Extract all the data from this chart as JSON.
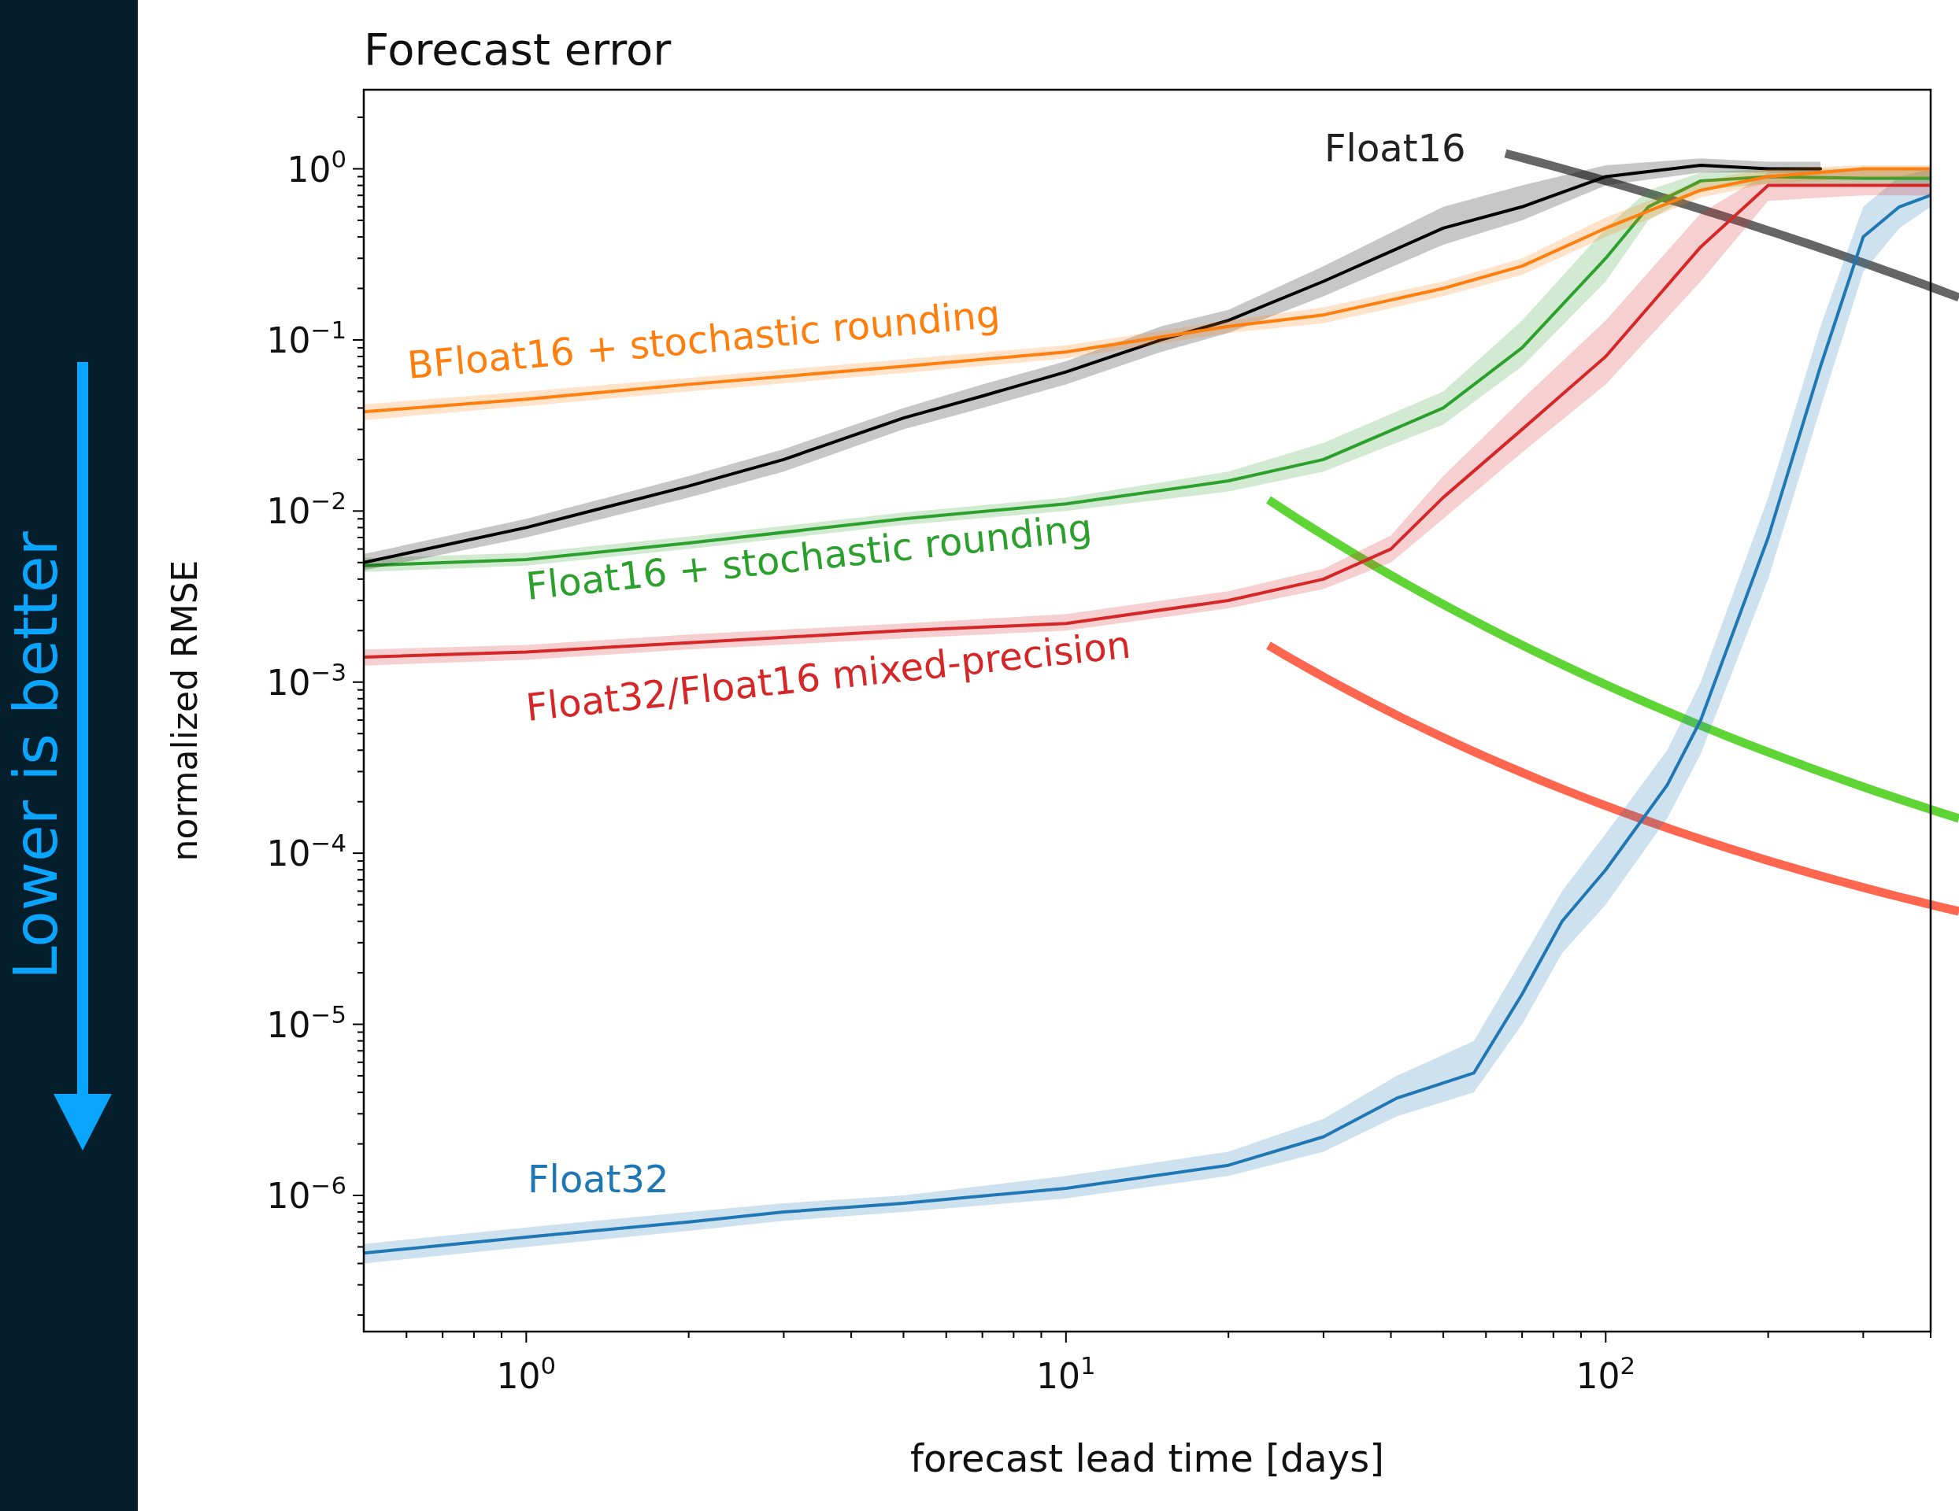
{
  "chart_data": {
    "type": "line",
    "title": "Forecast error",
    "xlabel": "forecast lead time [days]",
    "ylabel": "normalized RMSE",
    "log": "xy",
    "grid": false,
    "line_style": "solid",
    "marker": "none",
    "annotations": [
      "Lower is better"
    ],
    "xlim": [
      0.5,
      400
    ],
    "ylim": [
      1.6e-07,
      2.9
    ],
    "xticks": [
      {
        "value": 0.6,
        "label": null
      },
      {
        "value": 0.7,
        "label": null
      },
      {
        "value": 0.8,
        "label": null
      },
      {
        "value": 0.9,
        "label": null
      },
      {
        "value": 1,
        "label": "10$^{0}$"
      },
      {
        "value": 2,
        "label": null
      },
      {
        "value": 3,
        "label": null
      },
      {
        "value": 4,
        "label": null
      },
      {
        "value": 5,
        "label": null
      },
      {
        "value": 6,
        "label": null
      },
      {
        "value": 7,
        "label": null
      },
      {
        "value": 8,
        "label": null
      },
      {
        "value": 9,
        "label": null
      },
      {
        "value": 10,
        "label": "10$^{1}$"
      },
      {
        "value": 20,
        "label": null
      },
      {
        "value": 30,
        "label": null
      },
      {
        "value": 40,
        "label": null
      },
      {
        "value": 50,
        "label": null
      },
      {
        "value": 60,
        "label": null
      },
      {
        "value": 70,
        "label": null
      },
      {
        "value": 80,
        "label": null
      },
      {
        "value": 90,
        "label": null
      },
      {
        "value": 100,
        "label": "10$^{2}$"
      },
      {
        "value": 200,
        "label": null
      },
      {
        "value": 300,
        "label": null
      },
      {
        "value": 400,
        "label": null
      }
    ],
    "yticks": [
      {
        "value": 2e-07,
        "label": null
      },
      {
        "value": 3e-07,
        "label": null
      },
      {
        "value": 4e-07,
        "label": null
      },
      {
        "value": 5e-07,
        "label": null
      },
      {
        "value": 6e-07,
        "label": null
      },
      {
        "value": 7e-07,
        "label": null
      },
      {
        "value": 8e-07,
        "label": null
      },
      {
        "value": 9e-07,
        "label": null
      },
      {
        "value": 1e-06,
        "label": "10$^{−6}$"
      },
      {
        "value": 2e-06,
        "label": null
      },
      {
        "value": 3e-06,
        "label": null
      },
      {
        "value": 4e-06,
        "label": null
      },
      {
        "value": 5e-06,
        "label": null
      },
      {
        "value": 6e-06,
        "label": null
      },
      {
        "value": 7e-06,
        "label": null
      },
      {
        "value": 8e-06,
        "label": null
      },
      {
        "value": 9e-06,
        "label": null
      },
      {
        "value": 1e-05,
        "label": "10$^{−5}$"
      },
      {
        "value": 2e-05,
        "label": null
      },
      {
        "value": 3e-05,
        "label": null
      },
      {
        "value": 4e-05,
        "label": null
      },
      {
        "value": 5e-05,
        "label": null
      },
      {
        "value": 6e-05,
        "label": null
      },
      {
        "value": 7e-05,
        "label": null
      },
      {
        "value": 8e-05,
        "label": null
      },
      {
        "value": 9e-05,
        "label": null
      },
      {
        "value": 0.0001,
        "label": "10$^{−4}$"
      },
      {
        "value": 0.0002,
        "label": null
      },
      {
        "value": 0.0003,
        "label": null
      },
      {
        "value": 0.0004,
        "label": null
      },
      {
        "value": 0.0005,
        "label": null
      },
      {
        "value": 0.0006,
        "label": null
      },
      {
        "value": 0.0007,
        "label": null
      },
      {
        "value": 0.0008,
        "label": null
      },
      {
        "value": 0.0009,
        "label": null
      },
      {
        "value": 0.001,
        "label": "10$^{−3}$"
      },
      {
        "value": 0.002,
        "label": null
      },
      {
        "value": 0.003,
        "label": null
      },
      {
        "value": 0.004,
        "label": null
      },
      {
        "value": 0.005,
        "label": null
      },
      {
        "value": 0.006,
        "label": null
      },
      {
        "value": 0.007,
        "label": null
      },
      {
        "value": 0.008,
        "label": null
      },
      {
        "value": 0.009,
        "label": null
      },
      {
        "value": 0.01,
        "label": "10$^{−2}$"
      },
      {
        "value": 0.02,
        "label": null
      },
      {
        "value": 0.03,
        "label": null
      },
      {
        "value": 0.04,
        "label": null
      },
      {
        "value": 0.05,
        "label": null
      },
      {
        "value": 0.06,
        "label": null
      },
      {
        "value": 0.07,
        "label": null
      },
      {
        "value": 0.08,
        "label": null
      },
      {
        "value": 0.09,
        "label": null
      },
      {
        "value": 0.1,
        "label": "10$^{−1}$"
      },
      {
        "value": 0.2,
        "label": null
      },
      {
        "value": 0.3,
        "label": null
      },
      {
        "value": 0.4,
        "label": null
      },
      {
        "value": 0.5,
        "label": null
      },
      {
        "value": 0.6,
        "label": null
      },
      {
        "value": 0.7,
        "label": null
      },
      {
        "value": 0.8,
        "label": null
      },
      {
        "value": 0.9,
        "label": null
      },
      {
        "value": 1,
        "label": "10$^{0}$"
      },
      {
        "value": 2,
        "label": null
      }
    ],
    "series": [
      {
        "name": "Float16",
        "color": "#000000",
        "x": [
          0.5,
          1,
          2,
          3,
          5,
          7,
          10,
          15,
          20,
          30,
          50,
          70,
          100,
          150,
          200,
          250
        ],
        "values": [
          0.005,
          0.008,
          0.014,
          0.02,
          0.035,
          0.047,
          0.065,
          0.1,
          0.13,
          0.22,
          0.45,
          0.6,
          0.9,
          1.05,
          1.0,
          1.0
        ],
        "lower": [
          0.0045,
          0.007,
          0.012,
          0.017,
          0.03,
          0.04,
          0.055,
          0.085,
          0.11,
          0.18,
          0.36,
          0.5,
          0.8,
          0.95,
          0.95,
          0.95
        ],
        "upper": [
          0.0056,
          0.009,
          0.016,
          0.023,
          0.04,
          0.055,
          0.075,
          0.12,
          0.15,
          0.27,
          0.6,
          0.8,
          1.05,
          1.15,
          1.1,
          1.1
        ]
      },
      {
        "name": "BFloat16 + stochastic rounding",
        "color": "#ff7f0e",
        "x": [
          0.5,
          1,
          2,
          5,
          10,
          20,
          30,
          50,
          70,
          100,
          150,
          200,
          300,
          400
        ],
        "values": [
          0.038,
          0.045,
          0.055,
          0.07,
          0.085,
          0.12,
          0.14,
          0.2,
          0.27,
          0.45,
          0.75,
          0.9,
          1.0,
          1.0
        ],
        "lower": [
          0.034,
          0.041,
          0.05,
          0.064,
          0.078,
          0.11,
          0.125,
          0.18,
          0.24,
          0.4,
          0.68,
          0.82,
          0.88,
          0.88
        ],
        "upper": [
          0.042,
          0.05,
          0.06,
          0.077,
          0.093,
          0.13,
          0.155,
          0.22,
          0.3,
          0.52,
          0.85,
          1.0,
          1.05,
          1.05
        ]
      },
      {
        "name": "Float16 + stochastic rounding",
        "color": "#2ca02c",
        "x": [
          0.5,
          1,
          2,
          5,
          10,
          20,
          30,
          50,
          70,
          100,
          120,
          150,
          200,
          300,
          400
        ],
        "values": [
          0.0048,
          0.0052,
          0.0065,
          0.009,
          0.011,
          0.015,
          0.02,
          0.04,
          0.09,
          0.3,
          0.6,
          0.85,
          0.9,
          0.88,
          0.88
        ],
        "lower": [
          0.0044,
          0.0048,
          0.006,
          0.0083,
          0.01,
          0.013,
          0.017,
          0.032,
          0.07,
          0.22,
          0.5,
          0.75,
          0.82,
          0.82,
          0.82
        ],
        "upper": [
          0.0053,
          0.0057,
          0.0071,
          0.0098,
          0.012,
          0.017,
          0.025,
          0.05,
          0.13,
          0.45,
          0.75,
          0.95,
          1.0,
          1.0,
          1.0
        ]
      },
      {
        "name": "Float32/Float16 mixed-precision",
        "color": "#d62728",
        "x": [
          0.5,
          1,
          2,
          5,
          10,
          20,
          30,
          40,
          50,
          70,
          100,
          150,
          200,
          300,
          400
        ],
        "values": [
          0.0014,
          0.0015,
          0.0017,
          0.002,
          0.0022,
          0.003,
          0.004,
          0.006,
          0.012,
          0.03,
          0.08,
          0.35,
          0.8,
          0.8,
          0.8
        ],
        "lower": [
          0.00125,
          0.00135,
          0.00155,
          0.0018,
          0.002,
          0.0027,
          0.0035,
          0.005,
          0.009,
          0.022,
          0.055,
          0.22,
          0.65,
          0.7,
          0.7
        ],
        "upper": [
          0.00155,
          0.00165,
          0.0019,
          0.0022,
          0.0025,
          0.0034,
          0.0046,
          0.0072,
          0.016,
          0.045,
          0.13,
          0.55,
          0.95,
          1.0,
          1.0
        ]
      },
      {
        "name": "Float32",
        "color": "#1f77b4",
        "x": [
          0.5,
          1,
          2,
          3,
          5,
          10,
          20,
          30,
          41,
          57,
          70,
          83,
          100,
          130,
          150,
          200,
          250,
          300,
          350,
          400
        ],
        "values": [
          4.6e-07,
          5.7e-07,
          7e-07,
          8e-07,
          9e-07,
          1.1e-06,
          1.5e-06,
          2.2e-06,
          3.7e-06,
          5.2e-06,
          1.5e-05,
          4e-05,
          8e-05,
          0.00025,
          0.0006,
          0.007,
          0.07,
          0.4,
          0.6,
          0.7
        ],
        "lower": [
          4e-07,
          5e-07,
          6.2e-07,
          7.1e-07,
          8e-07,
          9.6e-07,
          1.3e-06,
          1.8e-06,
          2.9e-06,
          4e-06,
          1e-05,
          2.6e-05,
          5e-05,
          0.00016,
          0.00038,
          0.004,
          0.04,
          0.25,
          0.45,
          0.6
        ],
        "upper": [
          5.2e-07,
          6.5e-07,
          8e-07,
          9e-07,
          1e-06,
          1.3e-06,
          1.8e-06,
          2.8e-06,
          5e-06,
          8e-06,
          2.4e-05,
          6e-05,
          0.00013,
          0.0004,
          0.001,
          0.012,
          0.12,
          0.6,
          0.9,
          1.0
        ]
      }
    ]
  }
}
